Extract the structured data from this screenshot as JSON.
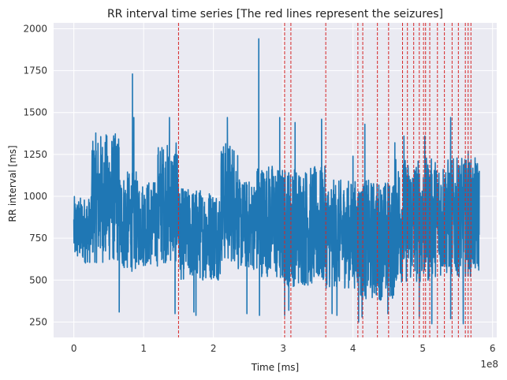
{
  "chart_data": {
    "type": "line",
    "title": "RR interval time series [The red lines represent the seizures]",
    "xlabel": "Time [ms]",
    "ylabel": "RR interval [ms]",
    "x_offset_label": "1e8",
    "x_scale": 100000000,
    "xlim": [
      -0.29,
      6.06
    ],
    "ylim": [
      158,
      2035
    ],
    "x_ticks": [
      0,
      1,
      2,
      3,
      4,
      5,
      6
    ],
    "x_tick_labels": [
      "0",
      "1",
      "2",
      "3",
      "4",
      "5",
      "6"
    ],
    "y_ticks": [
      250,
      500,
      750,
      1000,
      1250,
      1500,
      1750,
      2000
    ],
    "y_tick_labels": [
      "250",
      "500",
      "750",
      "1000",
      "1250",
      "1500",
      "1750",
      "2000"
    ],
    "grid": true,
    "series": [
      {
        "color": "#1f77b4",
        "x_range": [
          0,
          5.81
        ],
        "segments": [
          {
            "x0": 0.0,
            "x1": 0.25,
            "low": 600,
            "high": 1000
          },
          {
            "x0": 0.25,
            "x1": 0.65,
            "low": 600,
            "high": 1380
          },
          {
            "x0": 0.65,
            "x1": 0.9,
            "low": 550,
            "high": 1150
          },
          {
            "x0": 0.9,
            "x1": 1.2,
            "low": 580,
            "high": 1100
          },
          {
            "x0": 1.2,
            "x1": 1.5,
            "low": 600,
            "high": 1320
          },
          {
            "x0": 1.5,
            "x1": 2.1,
            "low": 500,
            "high": 1050
          },
          {
            "x0": 2.1,
            "x1": 2.35,
            "low": 600,
            "high": 1330
          },
          {
            "x0": 2.35,
            "x1": 2.6,
            "low": 560,
            "high": 1100
          },
          {
            "x0": 2.6,
            "x1": 2.9,
            "low": 520,
            "high": 1200
          },
          {
            "x0": 2.9,
            "x1": 3.6,
            "low": 460,
            "high": 1180
          },
          {
            "x0": 3.6,
            "x1": 4.1,
            "low": 450,
            "high": 1100
          },
          {
            "x0": 4.1,
            "x1": 4.6,
            "low": 380,
            "high": 1100
          },
          {
            "x0": 4.6,
            "x1": 5.1,
            "low": 480,
            "high": 1230
          },
          {
            "x0": 5.1,
            "x1": 5.81,
            "low": 520,
            "high": 1230
          }
        ],
        "spikes": [
          {
            "x": 0.84,
            "y": 1730
          },
          {
            "x": 0.86,
            "y": 1470
          },
          {
            "x": 1.37,
            "y": 1470
          },
          {
            "x": 2.2,
            "y": 1470
          },
          {
            "x": 2.65,
            "y": 1940
          },
          {
            "x": 2.95,
            "y": 1470
          },
          {
            "x": 3.17,
            "y": 1440
          },
          {
            "x": 3.55,
            "y": 1460
          },
          {
            "x": 4.0,
            "y": 1240
          },
          {
            "x": 4.17,
            "y": 1430
          },
          {
            "x": 4.6,
            "y": 1320
          },
          {
            "x": 4.73,
            "y": 1360
          },
          {
            "x": 5.03,
            "y": 1360
          },
          {
            "x": 5.4,
            "y": 1470
          },
          {
            "x": 5.65,
            "y": 1270
          },
          {
            "x": 0.65,
            "y": 310
          },
          {
            "x": 1.45,
            "y": 300
          },
          {
            "x": 1.72,
            "y": 310
          },
          {
            "x": 1.75,
            "y": 290
          },
          {
            "x": 2.48,
            "y": 300
          },
          {
            "x": 2.66,
            "y": 290
          },
          {
            "x": 3.02,
            "y": 290
          },
          {
            "x": 3.08,
            "y": 320
          },
          {
            "x": 3.7,
            "y": 300
          },
          {
            "x": 3.77,
            "y": 290
          },
          {
            "x": 4.08,
            "y": 250
          },
          {
            "x": 4.13,
            "y": 280
          },
          {
            "x": 4.5,
            "y": 300
          },
          {
            "x": 4.95,
            "y": 280
          },
          {
            "x": 5.13,
            "y": 240
          },
          {
            "x": 5.4,
            "y": 270
          },
          {
            "x": 5.58,
            "y": 240
          }
        ]
      }
    ],
    "seizure_lines": {
      "color": "#d62728",
      "style": "dashed",
      "x": [
        1.5,
        3.02,
        3.11,
        3.61,
        4.07,
        4.14,
        4.35,
        4.51,
        4.71,
        4.78,
        4.87,
        4.95,
        5.01,
        5.04,
        5.1,
        5.21,
        5.31,
        5.42,
        5.51,
        5.61,
        5.65,
        5.69
      ]
    },
    "colors": {
      "plot_background": "#eaeaf2",
      "grid": "#ffffff",
      "line": "#1f77b4",
      "seizure": "#d62728"
    }
  }
}
